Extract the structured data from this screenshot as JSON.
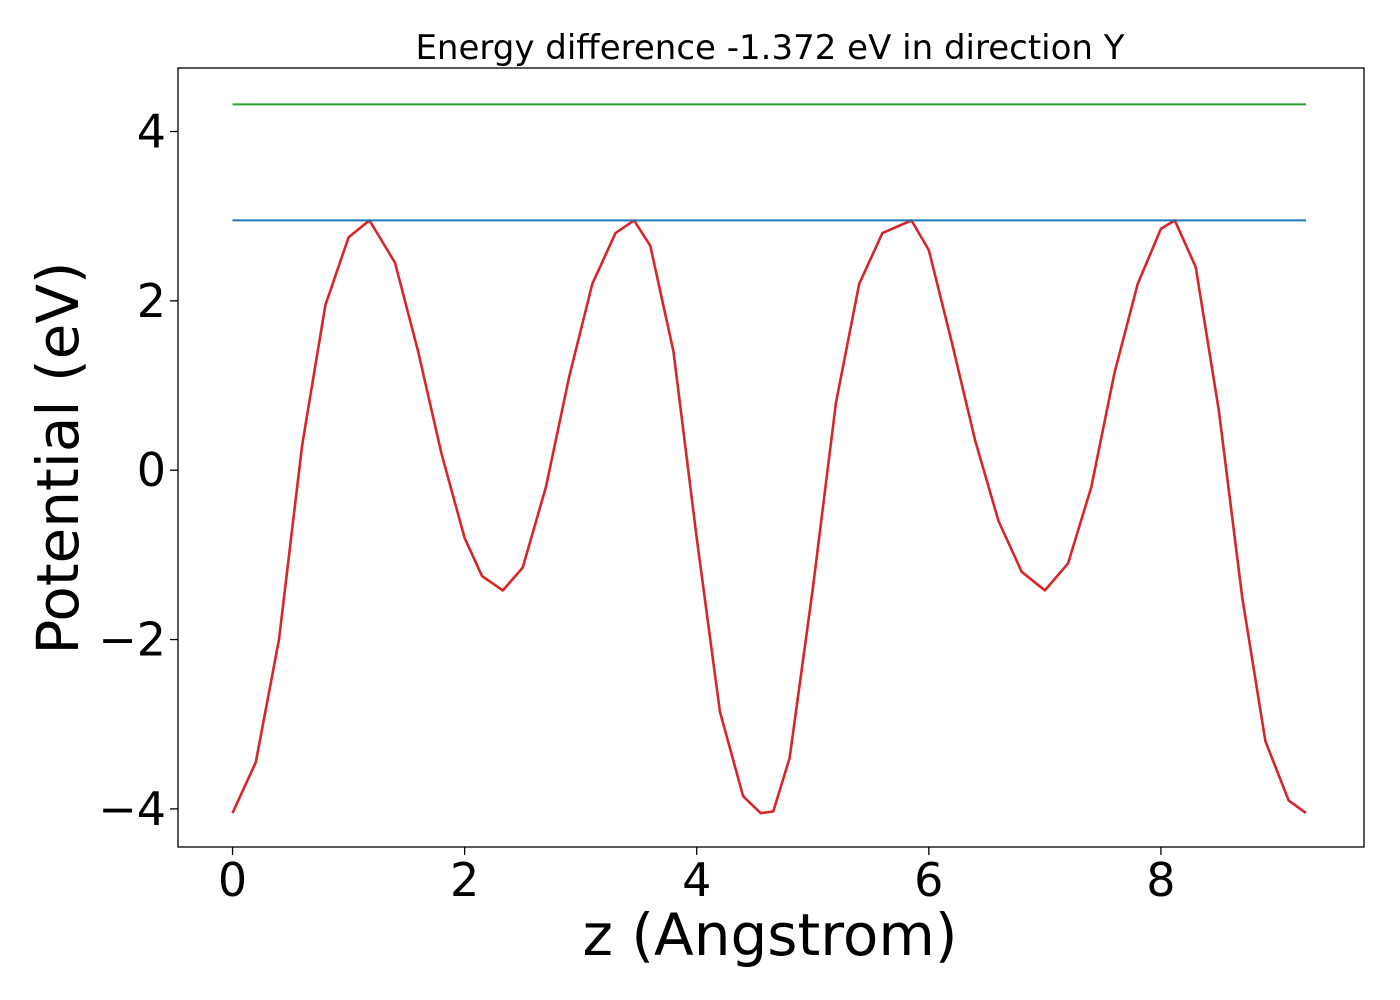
{
  "chart_data": {
    "type": "line",
    "title": "Energy difference -1.372 eV in direction Y",
    "xlabel": "z (Angstrom)",
    "ylabel": "Potential (eV)",
    "xlim": [
      -0.47,
      9.75
    ],
    "ylim": [
      -4.45,
      4.75
    ],
    "xticks": [
      0,
      2,
      4,
      6,
      8
    ],
    "xtick_labels": [
      "0",
      "2",
      "4",
      "6",
      "8"
    ],
    "yticks": [
      -4,
      -2,
      0,
      2,
      4
    ],
    "ytick_labels": [
      "−4",
      "−2",
      "0",
      "2",
      "4"
    ],
    "grid": false,
    "series": [
      {
        "color": "#d62728",
        "x": [
          0.0,
          0.2,
          0.4,
          0.6,
          0.8,
          1.0,
          1.18,
          1.4,
          1.6,
          1.8,
          2.0,
          2.15,
          2.33,
          2.5,
          2.7,
          2.9,
          3.1,
          3.3,
          3.46,
          3.6,
          3.8,
          4.0,
          4.2,
          4.4,
          4.55,
          4.66,
          4.8,
          5.0,
          5.2,
          5.4,
          5.6,
          5.85,
          6.0,
          6.2,
          6.4,
          6.6,
          6.8,
          7.0,
          7.2,
          7.4,
          7.6,
          7.8,
          8.0,
          8.12,
          8.3,
          8.5,
          8.7,
          8.9,
          9.1,
          9.25
        ],
        "y": [
          -4.05,
          -3.45,
          -2.0,
          0.3,
          1.95,
          2.75,
          2.95,
          2.45,
          1.4,
          0.2,
          -0.8,
          -1.25,
          -1.42,
          -1.15,
          -0.2,
          1.1,
          2.2,
          2.8,
          2.95,
          2.65,
          1.4,
          -0.8,
          -2.85,
          -3.85,
          -4.05,
          -4.03,
          -3.4,
          -1.4,
          0.8,
          2.2,
          2.8,
          2.95,
          2.6,
          1.5,
          0.35,
          -0.6,
          -1.2,
          -1.42,
          -1.1,
          -0.2,
          1.15,
          2.2,
          2.85,
          2.95,
          2.4,
          0.7,
          -1.5,
          -3.2,
          -3.9,
          -4.05
        ]
      },
      {
        "color": "#1f77b4",
        "x": [
          0.0,
          9.25
        ],
        "y": [
          2.95,
          2.95
        ]
      },
      {
        "color": "#2ca02c",
        "x": [
          0.0,
          9.25
        ],
        "y": [
          4.32,
          4.32
        ]
      }
    ]
  }
}
